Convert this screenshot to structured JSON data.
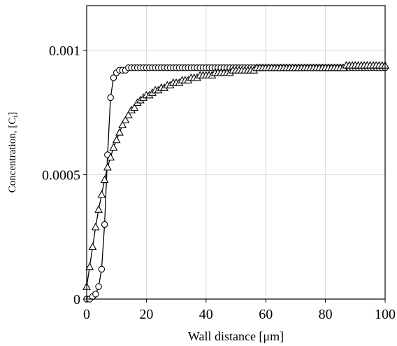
{
  "chart_data": {
    "type": "scatter",
    "title": "",
    "xlabel": "Wall distance [μm]",
    "ylabel": "Concentration, [C",
    "ylabel_sub": "i",
    "ylabel_suffix": "]",
    "xlim": [
      0,
      100
    ],
    "ylim": [
      0,
      0.00118
    ],
    "x_ticks": [
      0,
      20,
      40,
      60,
      80,
      100
    ],
    "x_tick_labels": [
      "0",
      "20",
      "40",
      "60",
      "80",
      "100"
    ],
    "y_ticks": [
      0,
      0.0005,
      0.001
    ],
    "y_tick_labels": [
      "0",
      "0.0005",
      "0.001"
    ],
    "grid": true,
    "legend": "none",
    "colors": {
      "series": "#000000",
      "grid": "#d9d9d9"
    },
    "series": [
      {
        "marker": "circle",
        "x": [
          0,
          1,
          2,
          3,
          4,
          5,
          6,
          7,
          8,
          9,
          10,
          11,
          12,
          13,
          14,
          15,
          16,
          17,
          18,
          19,
          20,
          21,
          22,
          23,
          24,
          25,
          26,
          27,
          28,
          29,
          30,
          31,
          32,
          33,
          34,
          35,
          36,
          37,
          38,
          39,
          40,
          41,
          42,
          43,
          44,
          45,
          46,
          47,
          48,
          49,
          50,
          51,
          52,
          53,
          54,
          55,
          56,
          57,
          58,
          59,
          60,
          61,
          62,
          63,
          64,
          65,
          66,
          67,
          68,
          69,
          70,
          71,
          72,
          73,
          74,
          75,
          76,
          77,
          78,
          79,
          80,
          81,
          82,
          83,
          84,
          85,
          86,
          87,
          88,
          89,
          90,
          91,
          92,
          93,
          94,
          95,
          96,
          97,
          98,
          99,
          100
        ],
        "y": [
          0.0,
          0.0,
          1e-05,
          2e-05,
          5e-05,
          0.00012,
          0.0003,
          0.00058,
          0.00081,
          0.00089,
          0.00091,
          0.00092,
          0.00092,
          0.00092,
          0.00093,
          0.00093,
          0.00093,
          0.00093,
          0.00093,
          0.00093,
          0.00093,
          0.00093,
          0.00093,
          0.00093,
          0.00093,
          0.00093,
          0.00093,
          0.00093,
          0.00093,
          0.00093,
          0.00093,
          0.00093,
          0.00093,
          0.00093,
          0.00093,
          0.00093,
          0.00093,
          0.00093,
          0.00093,
          0.00093,
          0.00093,
          0.00093,
          0.00093,
          0.00093,
          0.00093,
          0.00093,
          0.00093,
          0.00093,
          0.00093,
          0.00093,
          0.00093,
          0.00093,
          0.00093,
          0.00093,
          0.00093,
          0.00093,
          0.00093,
          0.00093,
          0.00093,
          0.00093,
          0.00093,
          0.00093,
          0.00093,
          0.00093,
          0.00093,
          0.00093,
          0.00093,
          0.00093,
          0.00093,
          0.00093,
          0.00093,
          0.00093,
          0.00093,
          0.00093,
          0.00093,
          0.00093,
          0.00093,
          0.00093,
          0.00093,
          0.00093,
          0.00093,
          0.00093,
          0.00093,
          0.00093,
          0.00093,
          0.00093,
          0.00093,
          0.00093,
          0.00093,
          0.00093,
          0.00093,
          0.00093,
          0.00093,
          0.00093,
          0.00093,
          0.00093,
          0.00093,
          0.00093,
          0.00093,
          0.00093,
          0.00093
        ]
      },
      {
        "marker": "triangle",
        "x": [
          0,
          1,
          2,
          3,
          4,
          5,
          6,
          7,
          8,
          9,
          10,
          11,
          12,
          13,
          14,
          15,
          16,
          17,
          18,
          19,
          20,
          21,
          22,
          23,
          24,
          25,
          26,
          27,
          28,
          29,
          30,
          31,
          32,
          33,
          34,
          35,
          36,
          37,
          38,
          39,
          40,
          41,
          42,
          43,
          44,
          45,
          46,
          47,
          48,
          49,
          50,
          51,
          52,
          53,
          54,
          55,
          56,
          57,
          58,
          59,
          60,
          61,
          62,
          63,
          64,
          65,
          66,
          67,
          68,
          69,
          70,
          71,
          72,
          73,
          74,
          75,
          76,
          77,
          78,
          79,
          80,
          81,
          82,
          83,
          84,
          85,
          86,
          87,
          88,
          89,
          90,
          91,
          92,
          93,
          94,
          95,
          96,
          97,
          98,
          99,
          100
        ],
        "y": [
          5e-05,
          0.00013,
          0.00021,
          0.00029,
          0.00036,
          0.00042,
          0.00048,
          0.00053,
          0.00057,
          0.00061,
          0.00064,
          0.00067,
          0.0007,
          0.00072,
          0.00074,
          0.00076,
          0.00077,
          0.00079,
          0.0008,
          0.00081,
          0.00082,
          0.00082,
          0.00083,
          0.00084,
          0.00084,
          0.00085,
          0.00085,
          0.00086,
          0.00086,
          0.00087,
          0.00087,
          0.00087,
          0.00088,
          0.00088,
          0.00088,
          0.00089,
          0.00089,
          0.00089,
          0.0009,
          0.0009,
          0.0009,
          0.0009,
          0.0009,
          0.00091,
          0.00091,
          0.00091,
          0.00091,
          0.00091,
          0.00091,
          0.00092,
          0.00092,
          0.00092,
          0.00092,
          0.00092,
          0.00092,
          0.00092,
          0.00092,
          0.00093,
          0.00093,
          0.00093,
          0.00093,
          0.00093,
          0.00093,
          0.00093,
          0.00093,
          0.00093,
          0.00093,
          0.00093,
          0.00093,
          0.00093,
          0.00093,
          0.00093,
          0.00093,
          0.00093,
          0.00093,
          0.00093,
          0.00093,
          0.00093,
          0.00093,
          0.00093,
          0.00093,
          0.00093,
          0.00093,
          0.00093,
          0.00093,
          0.00093,
          0.00093,
          0.00094,
          0.00094,
          0.00094,
          0.00094,
          0.00094,
          0.00094,
          0.00094,
          0.00094,
          0.00094,
          0.00094,
          0.00094,
          0.00094,
          0.00094,
          0.00094
        ]
      }
    ]
  }
}
